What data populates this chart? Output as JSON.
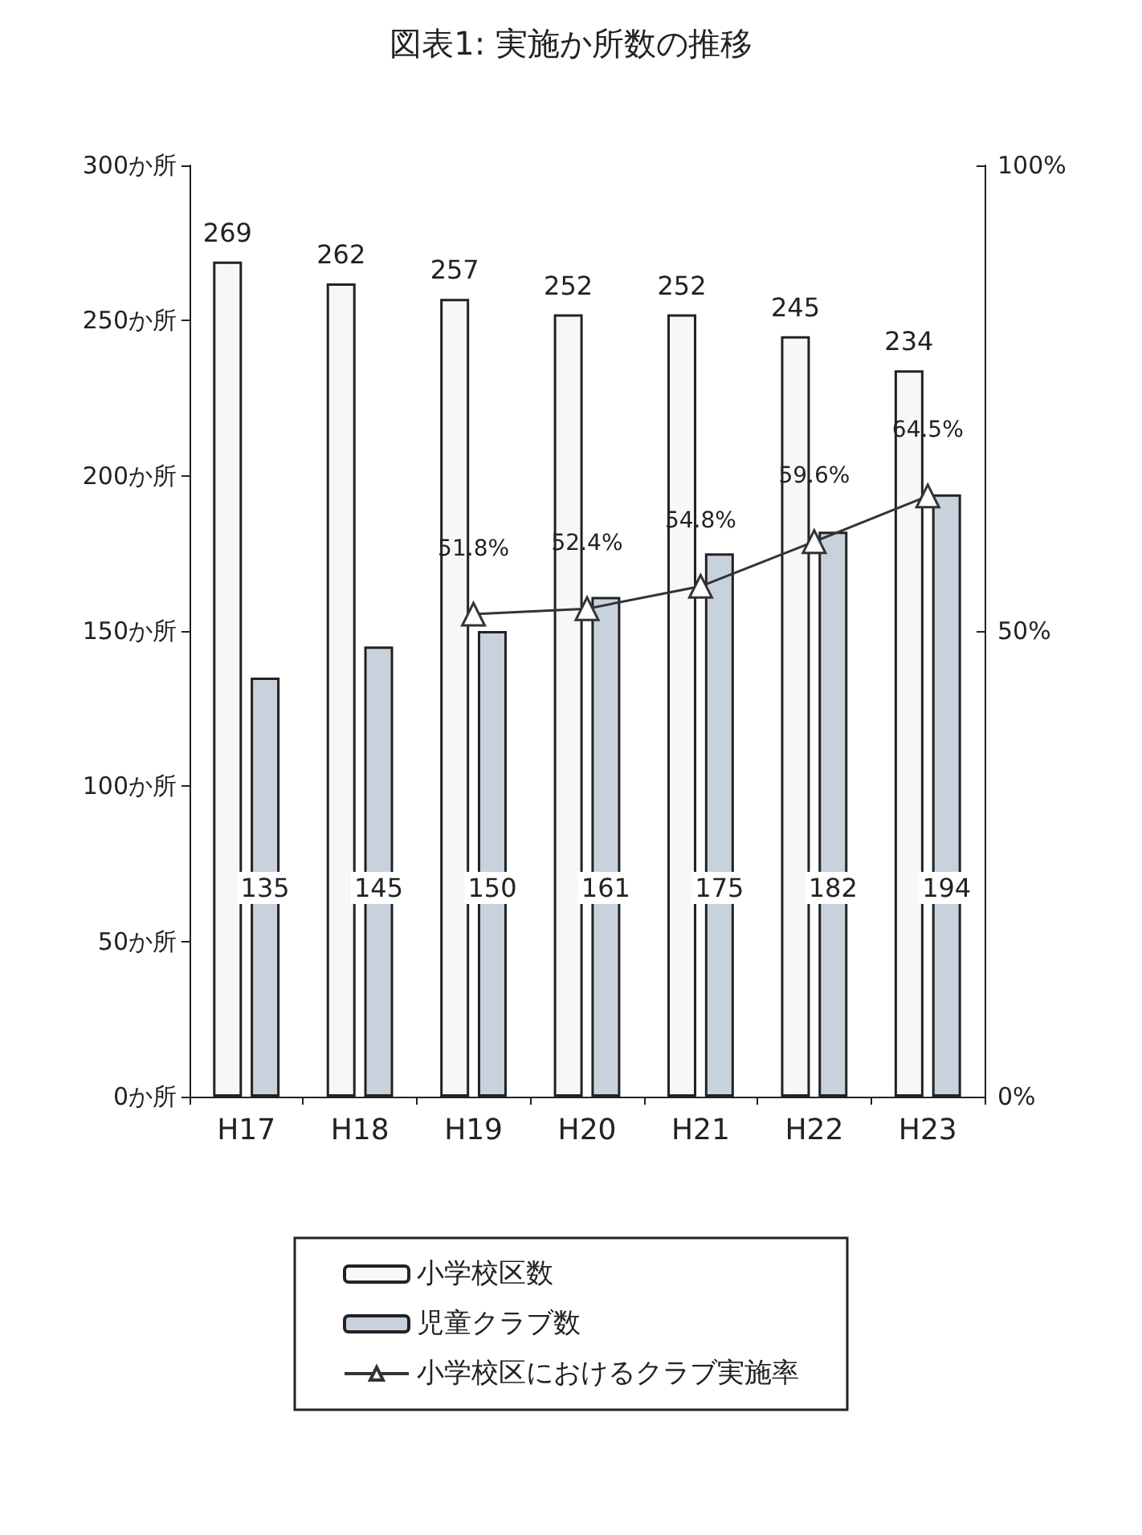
{
  "chart_data": {
    "type": "bar",
    "title": "図表1: 実施か所数の推移",
    "categories": [
      "H17",
      "H18",
      "H19",
      "H20",
      "H21",
      "H22",
      "H23"
    ],
    "series": [
      {
        "name": "小学校区数",
        "color": "#f7f7f7",
        "values": [
          269,
          262,
          257,
          252,
          252,
          245,
          234
        ]
      },
      {
        "name": "児童クラブ数",
        "color": "#c8d2dc",
        "values": [
          135,
          145,
          150,
          161,
          175,
          182,
          194
        ]
      },
      {
        "name": "小学校区におけるクラブ実施率",
        "type": "line",
        "axis": "y2",
        "color": "#333333",
        "values": [
          null,
          null,
          51.8,
          52.4,
          54.8,
          59.6,
          64.5
        ],
        "value_labels": [
          null,
          null,
          "51.8%",
          "52.4%",
          "54.8%",
          "59.6%",
          "64.5%"
        ]
      }
    ],
    "ylim": [
      0,
      300
    ],
    "yticks": [
      {
        "value": 0,
        "label": "0か所"
      },
      {
        "value": 50,
        "label": "50か所"
      },
      {
        "value": 100,
        "label": "100か所"
      },
      {
        "value": 150,
        "label": "150か所"
      },
      {
        "value": 200,
        "label": "200か所"
      },
      {
        "value": 250,
        "label": "250か所"
      },
      {
        "value": 300,
        "label": "300か所"
      }
    ],
    "y2lim": [
      0,
      100
    ],
    "y2ticks": [
      {
        "value": 0,
        "label": "0%"
      },
      {
        "value": 50,
        "label": "50%"
      },
      {
        "value": 100,
        "label": "100%"
      }
    ],
    "data_labels": true,
    "marker": "triangle",
    "line_style": "solid",
    "grid": false,
    "legend": "bottom"
  }
}
